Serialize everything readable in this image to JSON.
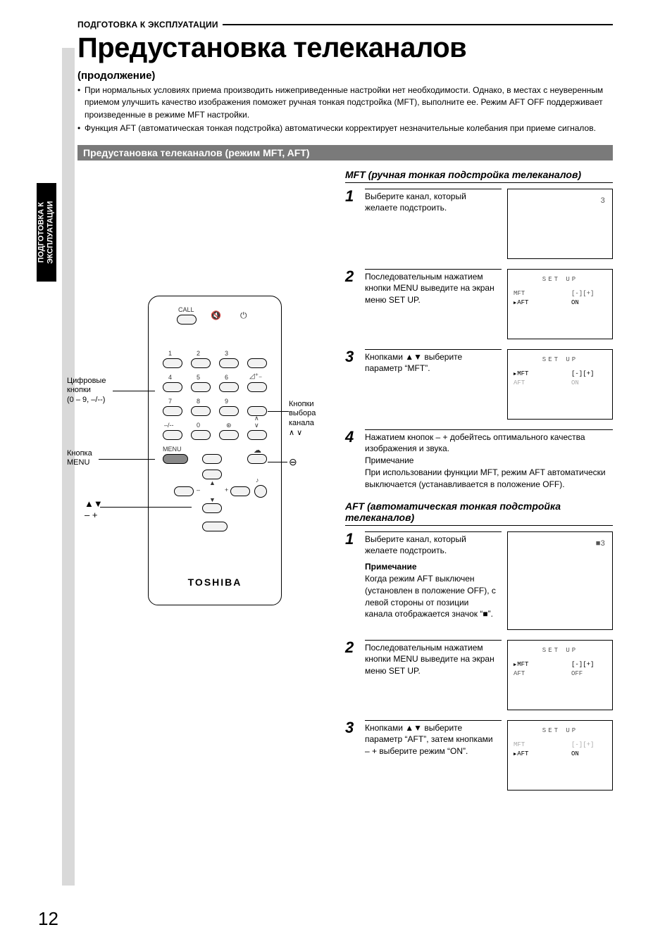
{
  "page_number": "12",
  "header_category": "ПОДГОТОВКА К ЭКСПЛУАТАЦИИ",
  "side_tab": "ПОДГОТОВКА К\nЭКСПЛУАТАЦИИ",
  "title": "Предустановка телеканалов",
  "subtitle": "(продолжение)",
  "intro_bullets": [
    "При нормальных условиях приема производить нижеприведенные настройки нет необходимости. Однако, в местах с неуверенным приемом улучшить качество изображения поможет ручная тонкая подстройка (MFT), выполните ее. Режим AFT OFF поддерживает произведенные в режиме MFT настройки.",
    "Функция AFT (автоматическая тонкая подстройка) автоматически корректирует незначительные колебания при приеме сигналов."
  ],
  "section_bar": "Предустановка телеканалов (режим MFT, AFT)",
  "remote": {
    "brand": "TOSHIBA",
    "call": "CALL",
    "menu": "MENU",
    "callouts": {
      "digits": "Цифровые\nкнопки\n(0 – 9, –/--)",
      "menu_btn": "Кнопка\nMENU",
      "nav": "▲▼\n– +",
      "channel": "Кнопки\nвыбора\nканала\n∧ ∨"
    }
  },
  "mft": {
    "heading": "MFT (ручная тонкая подстройка телеканалов)",
    "steps": [
      {
        "n": "1",
        "text": "Выберите канал, который желаете подстроить.",
        "osd": {
          "type": "channel",
          "ch": "3"
        }
      },
      {
        "n": "2",
        "text": "Последовательным нажатием кнопки MENU выведите на экран меню SET UP.",
        "osd": {
          "type": "menu",
          "title": "SET UP",
          "mft_sel": false,
          "mft_v": "[-][+]",
          "aft_sel": true,
          "aft_v": "ON"
        }
      },
      {
        "n": "3",
        "text": "Кнопками ▲▼ выберите параметр “MFT”.",
        "osd": {
          "type": "menu",
          "title": "SET UP",
          "mft_sel": true,
          "mft_v": "[-][+]",
          "aft_sel": false,
          "aft_v": "ON",
          "aft_grey": true
        }
      },
      {
        "n": "4",
        "text": "Нажатием кнопок – + добейтесь оптимального качества изображения и звука.",
        "note_h": "Примечание",
        "note": "При использовании функции MFT, режим AFT автоматически выключается (устанавливается в положение OFF)."
      }
    ]
  },
  "aft": {
    "heading": "AFT (автоматическая тонкая подстройка телеканалов)",
    "steps": [
      {
        "n": "1",
        "text": "Выберите канал, который желаете подстроить.",
        "note_h": "Примечание",
        "note": "Когда режим AFT выключен (установлен в положение OFF), с левой стороны от позиции канала отображается значок “■”.",
        "osd": {
          "type": "channel",
          "ch": "■3"
        }
      },
      {
        "n": "2",
        "text": "Последовательным нажатием кнопки MENU выведите на экран меню SET UP.",
        "osd": {
          "type": "menu",
          "title": "SET UP",
          "mft_sel": true,
          "mft_v": "[-][+]",
          "aft_sel": false,
          "aft_v": "OFF"
        }
      },
      {
        "n": "3",
        "text": "Кнопками ▲▼ выберите параметр “AFT”, затем кнопками – + выберите режим “ON”.",
        "osd": {
          "type": "menu",
          "title": "SET UP",
          "mft_sel": false,
          "mft_v": "[-][+]",
          "mft_grey": true,
          "aft_sel": true,
          "aft_v": "ON"
        }
      }
    ]
  }
}
